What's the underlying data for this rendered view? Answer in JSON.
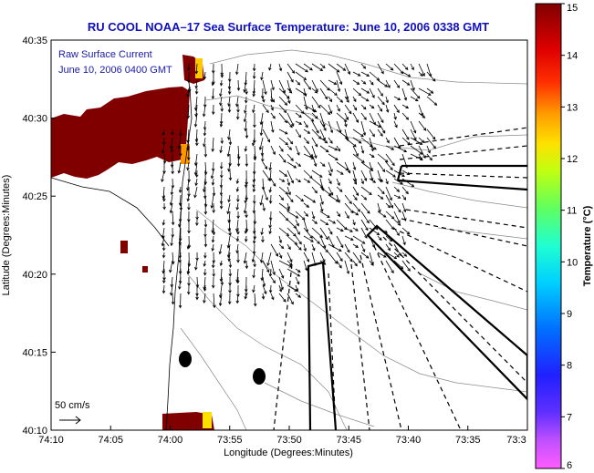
{
  "title": "RU COOL  NOAA–17  Sea Surface Temperature:  June 10, 2006 0338 GMT",
  "legend": {
    "series_label": "Raw Surface Current",
    "date_label": "June 10, 2006 0400 GMT",
    "scale_label": "50 cm/s"
  },
  "colorbar": {
    "label": "Temperature (°C)",
    "ticks": [
      "15",
      "14",
      "13",
      "12",
      "11",
      "10",
      "9",
      "8",
      "7",
      "6"
    ],
    "min": 6,
    "max": 15,
    "colors": [
      "#ff5cff",
      "#a040ff",
      "#2020ff",
      "#0080ff",
      "#00e0ff",
      "#30ffb0",
      "#80ff40",
      "#e0ff00",
      "#ffc000",
      "#ff6000",
      "#ff1000",
      "#c00000",
      "#800000"
    ]
  },
  "chart_data": {
    "type": "map",
    "xlabel": "Longitude (Degrees:Minutes)",
    "ylabel": "Latitude (Degrees:Minutes)",
    "x_ticks": [
      "74:10",
      "74:05",
      "74:00",
      "73:55",
      "73:50",
      "73:45",
      "73:40",
      "73:35",
      "73:3"
    ],
    "y_ticks": [
      "40:35",
      "40:30",
      "40:25",
      "40:20",
      "40:15",
      "40:10"
    ],
    "xlim": [
      "74:10 W",
      "73:30 W"
    ],
    "ylim": [
      "40:10 N",
      "40:35 N"
    ],
    "land_color": "#800000"
  }
}
